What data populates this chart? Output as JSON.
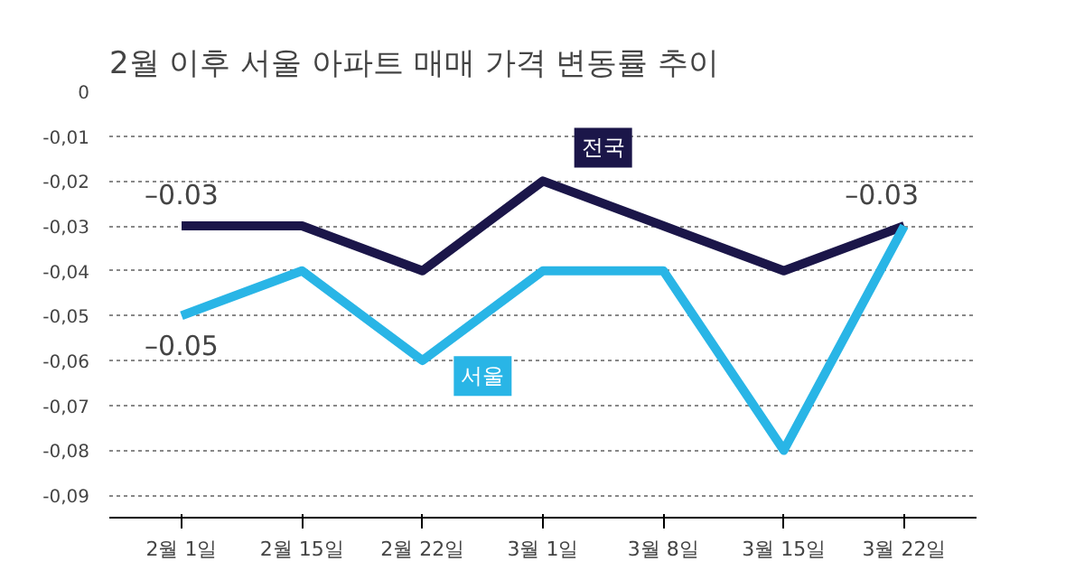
{
  "chart_data": {
    "type": "line",
    "title": "2월 이후 서울 아파트 매매 가격 변동률 추이",
    "categories": [
      "2월 1일",
      "2월 15일",
      "2월 22일",
      "3월 1일",
      "3월 8일",
      "3월 15일",
      "3월 22일"
    ],
    "series": [
      {
        "name": "전국",
        "color": "#1b1649",
        "values": [
          -0.03,
          -0.03,
          -0.04,
          -0.02,
          -0.03,
          -0.04,
          -0.03
        ],
        "value_labels": [
          "–0.03",
          null,
          null,
          null,
          null,
          null,
          "–0.03"
        ]
      },
      {
        "name": "서울",
        "color": "#29b5e6",
        "values": [
          -0.05,
          -0.04,
          -0.06,
          -0.04,
          -0.04,
          -0.08,
          -0.03
        ],
        "value_labels": [
          "–0.05",
          null,
          null,
          null,
          null,
          null,
          null
        ]
      }
    ],
    "ylim": [
      -0.095,
      0
    ],
    "yticks": [
      0,
      {
        "value": -0.01,
        "label": "-0,01"
      },
      {
        "value": -0.02,
        "label": "-0,02"
      },
      {
        "value": -0.03,
        "label": "-0,03"
      },
      {
        "value": -0.04,
        "label": "-0,04"
      },
      {
        "value": -0.05,
        "label": "-0,05"
      },
      {
        "value": -0.06,
        "label": "-0,06"
      },
      {
        "value": -0.07,
        "label": "-0,07"
      },
      {
        "value": -0.08,
        "label": "-0,08"
      },
      {
        "value": -0.09,
        "label": "-0,09"
      }
    ],
    "grid": "y",
    "line_style": "solid"
  }
}
